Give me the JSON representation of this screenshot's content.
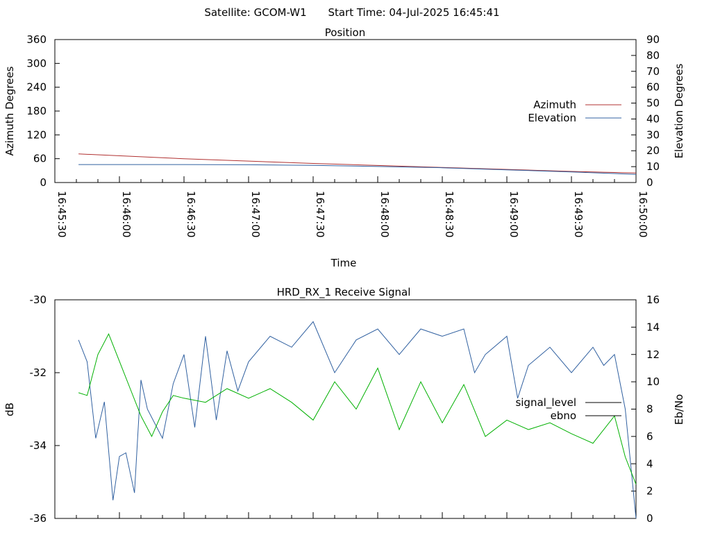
{
  "header": {
    "satellite": "Satellite: GCOM-W1",
    "start_time": "Start Time: 04-Jul-2025 16:45:41"
  },
  "chart_data": [
    {
      "type": "line",
      "title": "Position",
      "xlabel": "Time",
      "ylabel": "Azimuth Degrees",
      "y2label": "Elevation Degrees",
      "x_ticks": [
        "16:45:30",
        "16:46:00",
        "16:46:30",
        "16:47:00",
        "16:47:30",
        "16:48:00",
        "16:48:30",
        "16:49:00",
        "16:49:30",
        "16:50:00"
      ],
      "xlim": [
        "16:45:30",
        "16:50:00"
      ],
      "ylim": [
        0,
        360
      ],
      "y_ticks": [
        0,
        60,
        120,
        180,
        240,
        300,
        360
      ],
      "y2lim": [
        0,
        90
      ],
      "y2_ticks": [
        0,
        10,
        20,
        30,
        40,
        50,
        60,
        70,
        80,
        90
      ],
      "legend": "right",
      "series": [
        {
          "name": "Azimuth",
          "axis": "left",
          "color": "#b03030",
          "x": [
            "16:45:41",
            "16:46:30",
            "16:47:30",
            "16:48:30",
            "16:49:30",
            "16:50:00"
          ],
          "values": [
            72,
            60,
            48,
            38,
            28,
            24
          ]
        },
        {
          "name": "Elevation",
          "axis": "right",
          "color": "#3060a0",
          "x": [
            "16:45:41",
            "16:46:30",
            "16:47:00",
            "16:47:30",
            "16:48:00",
            "16:48:30",
            "16:49:00",
            "16:49:30",
            "16:50:00"
          ],
          "values": [
            11.3,
            11.3,
            11.2,
            10.8,
            10.1,
            9.3,
            8.0,
            6.7,
            5.1
          ]
        }
      ]
    },
    {
      "type": "line",
      "title": "HRD_RX_1 Receive Signal",
      "ylabel": "dB",
      "y2label": "Eb/No",
      "xlim": [
        "16:45:30",
        "16:50:00"
      ],
      "ylim": [
        -36,
        -30
      ],
      "y_ticks": [
        -36,
        -34,
        -32,
        -30
      ],
      "y2lim": [
        0,
        16
      ],
      "y2_ticks": [
        0,
        2,
        4,
        6,
        8,
        10,
        12,
        14,
        16
      ],
      "legend": "right",
      "series": [
        {
          "name": "signal_level",
          "axis": "left",
          "color": "#3060a0",
          "x": [
            "16:45:41",
            "16:45:45",
            "16:45:49",
            "16:45:53",
            "16:45:57",
            "16:46:00",
            "16:46:03",
            "16:46:07",
            "16:46:10",
            "16:46:13",
            "16:46:20",
            "16:46:25",
            "16:46:30",
            "16:46:35",
            "16:46:40",
            "16:46:45",
            "16:46:50",
            "16:46:55",
            "16:47:00",
            "16:47:10",
            "16:47:20",
            "16:47:30",
            "16:47:40",
            "16:47:50",
            "16:48:00",
            "16:48:10",
            "16:48:20",
            "16:48:30",
            "16:48:40",
            "16:48:45",
            "16:48:50",
            "16:49:00",
            "16:49:05",
            "16:49:10",
            "16:49:20",
            "16:49:30",
            "16:49:40",
            "16:49:45",
            "16:49:50",
            "16:49:55",
            "16:50:00"
          ],
          "values": [
            -31.1,
            -31.7,
            -33.8,
            -32.8,
            -35.5,
            -34.3,
            -34.2,
            -35.3,
            -32.2,
            -33.0,
            -33.8,
            -32.3,
            -31.5,
            -33.5,
            -31.0,
            -33.3,
            -31.4,
            -32.5,
            -31.7,
            -31.0,
            -31.3,
            -30.6,
            -32.0,
            -31.1,
            -30.8,
            -31.5,
            -30.8,
            -31.0,
            -30.8,
            -32.0,
            -31.5,
            -31.0,
            -32.7,
            -31.8,
            -31.3,
            -32.0,
            -31.3,
            -31.8,
            -31.5,
            -33.0,
            -36.0
          ]
        },
        {
          "name": "ebno",
          "axis": "right",
          "color": "#00b000",
          "x": [
            "16:45:41",
            "16:45:45",
            "16:45:50",
            "16:45:55",
            "16:46:00",
            "16:46:05",
            "16:46:10",
            "16:46:15",
            "16:46:20",
            "16:46:25",
            "16:46:30",
            "16:46:40",
            "16:46:50",
            "16:47:00",
            "16:47:10",
            "16:47:20",
            "16:47:30",
            "16:47:40",
            "16:47:50",
            "16:48:00",
            "16:48:10",
            "16:48:20",
            "16:48:30",
            "16:48:40",
            "16:48:50",
            "16:49:00",
            "16:49:10",
            "16:49:20",
            "16:49:30",
            "16:49:40",
            "16:49:50",
            "16:49:55",
            "16:50:00"
          ],
          "values": [
            9.2,
            9.0,
            12.0,
            13.5,
            11.5,
            9.5,
            7.5,
            6.0,
            7.8,
            9.0,
            8.8,
            8.5,
            9.5,
            8.8,
            9.5,
            8.5,
            7.2,
            10.0,
            8.0,
            11.0,
            6.5,
            10.0,
            7.0,
            9.8,
            6.0,
            7.2,
            6.5,
            7.0,
            6.2,
            5.5,
            7.5,
            4.5,
            2.5
          ]
        }
      ]
    }
  ]
}
